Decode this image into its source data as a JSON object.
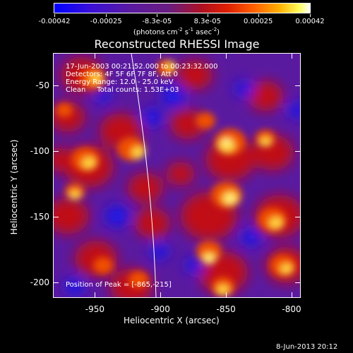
{
  "colorbar": {
    "tick_labels": [
      "-0.00042",
      "-0.00025",
      "-8.3e-05",
      "8.3e-05",
      "0.00025",
      "0.00042"
    ],
    "tick_values": [
      -0.00042,
      -0.00025,
      -8.3e-05,
      8.3e-05,
      0.00025,
      0.00042
    ],
    "unit_main": "(photons cm",
    "unit_exp1": "-2",
    "unit_mid": " s",
    "unit_exp2": "-1",
    "unit_tail": " asec",
    "unit_exp3": "-2",
    "unit_close": ")"
  },
  "title": "Reconstructed RHESSI Image",
  "info": {
    "time": "17-Jun-2003 00:21:52.000 to 00:23:32.000",
    "detectors": "Detectors: 4F 5F 6F 7F 8F, Att 0",
    "energy": "Energy Range: 12.0 - 25.0 keV",
    "clean": "Clean     Total counts: 1.53E+03",
    "peak": "Position of Peak = [-865,-215]"
  },
  "axes": {
    "xlabel": "Heliocentric X (arcsec)",
    "ylabel": "Heliocentric Y (arcsec)",
    "xticks": [
      "-950",
      "-900",
      "-850",
      "-800"
    ],
    "xtick_values": [
      -950,
      -900,
      -850,
      -800
    ],
    "yticks": [
      "-50",
      "-100",
      "-150",
      "-200"
    ],
    "ytick_values": [
      -50,
      -100,
      -150,
      -200
    ],
    "xlim": [
      -982,
      -793
    ],
    "ylim": [
      -212,
      -25
    ]
  },
  "footer": {
    "date": "8-Jun-2013 20:12"
  },
  "colors": {
    "background": "#000000",
    "low": "#0000ff",
    "mid": "#5a1aa0",
    "high": "#ffff40",
    "limb": "#ffffff"
  }
}
